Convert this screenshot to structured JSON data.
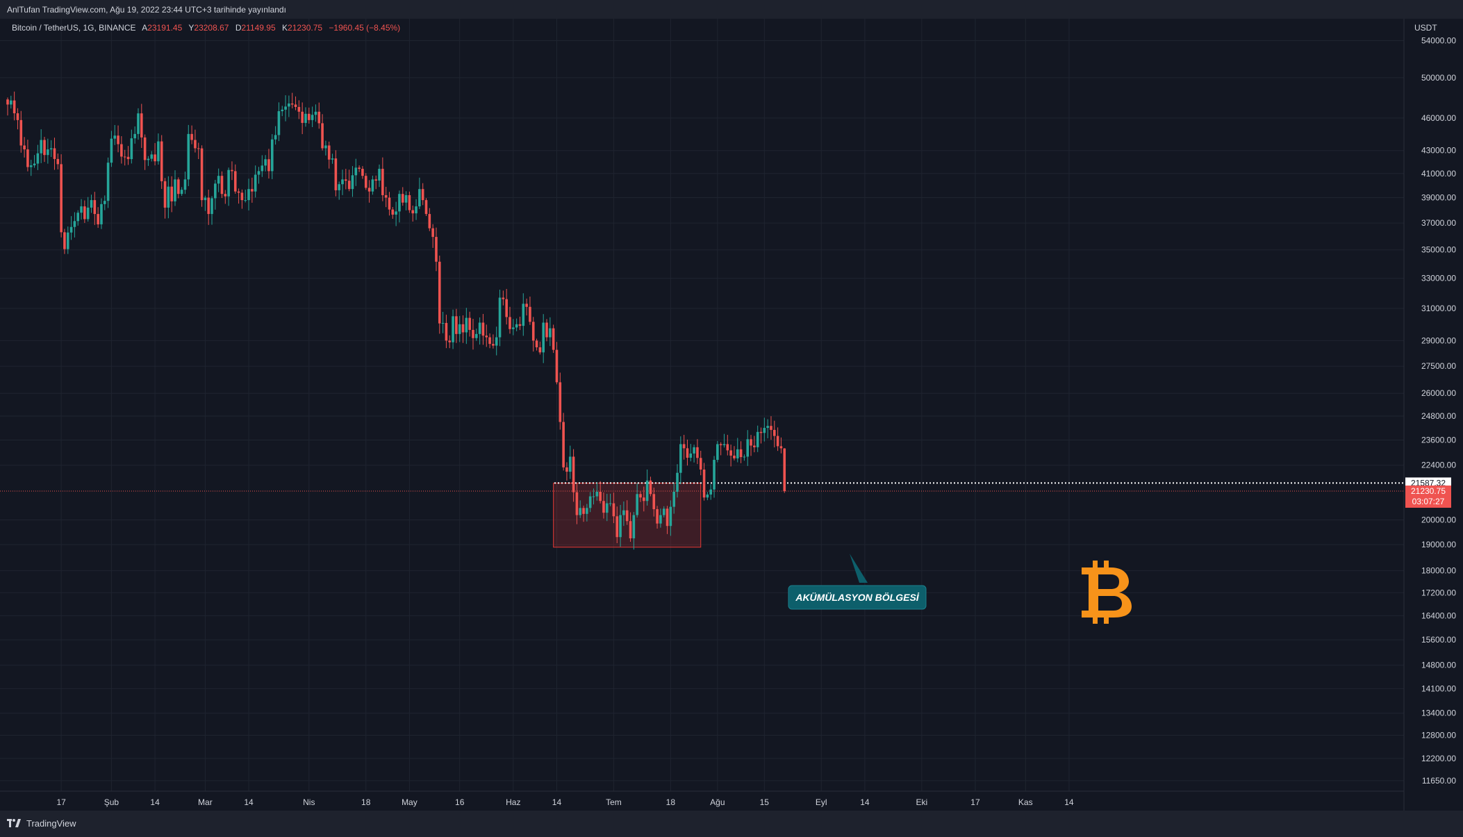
{
  "header": {
    "published_by": "AnlTufan TradingView.com, Ağu 19, 2022 23:44 UTC+3 tarihinde yayınlandı"
  },
  "legend": {
    "symbol": "Bitcoin / TetherUS, 1G, BINANCE",
    "open_label": "A",
    "open": "23191.45",
    "high_label": "Y",
    "high": "23208.67",
    "low_label": "D",
    "low": "21149.95",
    "close_label": "K",
    "close": "21230.75",
    "change": "−1960.45 (−8.45%)"
  },
  "price_axis": {
    "currency": "USDT",
    "ticks": [
      "54000.00",
      "50000.00",
      "46000.00",
      "43000.00",
      "41000.00",
      "39000.00",
      "37000.00",
      "35000.00",
      "33000.00",
      "31000.00",
      "29000.00",
      "27500.00",
      "26000.00",
      "24800.00",
      "23600.00",
      "22400.00",
      "20000.00",
      "19000.00",
      "18000.00",
      "17200.00",
      "16400.00",
      "15600.00",
      "14800.00",
      "14100.00",
      "13400.00",
      "12800.00",
      "12200.00",
      "11650.00"
    ],
    "line_label": "21587.32",
    "last_price": "21230.75",
    "countdown": "03:07:27"
  },
  "time_axis": {
    "ticks": [
      "17",
      "Şub",
      "14",
      "Mar",
      "14",
      "Nis",
      "18",
      "May",
      "16",
      "Haz",
      "14",
      "Tem",
      "18",
      "Ağu",
      "15",
      "Eyl",
      "14",
      "Eki",
      "17",
      "Kas",
      "14"
    ]
  },
  "annotation": {
    "label": "AKÜMÜLASYON BÖLGESİ"
  },
  "footer": {
    "brand": "TradingView"
  },
  "colors": {
    "background": "#131722",
    "up": "#26a69a",
    "down": "#ef5350",
    "accent_orange": "#f7931a",
    "zone_border": "#e53935",
    "callout": "#0d5f6b"
  },
  "icons": [
    "tradingview-logo-icon",
    "bitcoin-icon"
  ],
  "chart_data": {
    "type": "candlestick",
    "scale": "log",
    "symbol": "BTC/USDT",
    "ylim": [
      11400,
      56500
    ],
    "x_axis_ticks": [
      {
        "label": "17",
        "date": "2022-01-17"
      },
      {
        "label": "Şub",
        "date": "2022-02-01"
      },
      {
        "label": "14",
        "date": "2022-02-14"
      },
      {
        "label": "Mar",
        "date": "2022-03-01"
      },
      {
        "label": "14",
        "date": "2022-03-14"
      },
      {
        "label": "Nis",
        "date": "2022-04-01"
      },
      {
        "label": "18",
        "date": "2022-04-18"
      },
      {
        "label": "May",
        "date": "2022-05-01"
      },
      {
        "label": "16",
        "date": "2022-05-16"
      },
      {
        "label": "Haz",
        "date": "2022-06-01"
      },
      {
        "label": "14",
        "date": "2022-06-14"
      },
      {
        "label": "Tem",
        "date": "2022-07-01"
      },
      {
        "label": "18",
        "date": "2022-07-18"
      },
      {
        "label": "Ağu",
        "date": "2022-08-01"
      },
      {
        "label": "15",
        "date": "2022-08-15"
      },
      {
        "label": "Eyl",
        "date": "2022-09-01"
      },
      {
        "label": "14",
        "date": "2022-09-14"
      },
      {
        "label": "Eki",
        "date": "2022-10-01"
      },
      {
        "label": "17",
        "date": "2022-10-17"
      },
      {
        "label": "Kas",
        "date": "2022-11-01"
      },
      {
        "label": "14",
        "date": "2022-11-14"
      }
    ],
    "start_date": "2022-01-01",
    "end_date": "2022-08-19",
    "closes": [
      47300,
      47700,
      46450,
      45800,
      43450,
      43100,
      41550,
      41700,
      41850,
      42750,
      43950,
      42600,
      43100,
      43200,
      42250,
      41800,
      36300,
      35050,
      36280,
      36700,
      37150,
      37800,
      38300,
      37300,
      38200,
      38800,
      37700,
      36900,
      38480,
      38740,
      41930,
      44070,
      44350,
      43570,
      42460,
      42440,
      42240,
      44100,
      44500,
      46440,
      44180,
      42160,
      42270,
      42650,
      42050,
      43820,
      40350,
      38200,
      39900,
      38700,
      40500,
      39300,
      39640,
      40500,
      44500,
      43950,
      43200,
      43190,
      38800,
      39000,
      37700,
      38950,
      40150,
      40800,
      39300,
      39100,
      41300,
      41200,
      39500,
      39400,
      38800,
      38800,
      39700,
      39500,
      40900,
      41200,
      41680,
      42230,
      41200,
      44000,
      44400,
      46650,
      46800,
      47100,
      47400,
      47300,
      47060,
      46600,
      45530,
      46400,
      45800,
      46300,
      46600,
      45500,
      43200,
      43450,
      42200,
      42300,
      39600,
      40100,
      40500,
      40390,
      39700,
      40850,
      41500,
      41400,
      40800,
      39800,
      39500,
      40500,
      40400,
      41400,
      39200,
      39000,
      38050,
      37650,
      37900,
      39300,
      38600,
      39200,
      38000,
      37750,
      38300,
      39700,
      38800,
      37700,
      36600,
      35950,
      34150,
      30050,
      30080,
      29000,
      28900,
      30500,
      29400,
      30000,
      29500,
      30400,
      29650,
      29150,
      29400,
      30100,
      29300,
      29200,
      28800,
      28700,
      29200,
      31700,
      31600,
      30450,
      29700,
      29800,
      30000,
      29900,
      31300,
      31100,
      30150,
      29000,
      28600,
      28300,
      30100,
      29200,
      29750,
      28450,
      26600,
      24500,
      22300,
      22100,
      22800,
      21180,
      20200,
      20500,
      20250,
      20500,
      21000,
      21000,
      21200,
      20800,
      20300,
      20700,
      20700,
      20150,
      19300,
      20200,
      20400,
      19950,
      19250,
      20200,
      21100,
      20950,
      20800,
      21700,
      21100,
      20450,
      19850,
      20200,
      20470,
      19750,
      20550,
      21200,
      22050,
      23400,
      23200,
      22750,
      22950,
      23250,
      22740,
      22200,
      20950,
      21080,
      21300,
      22650,
      23400,
      23350,
      23400,
      23100,
      22850,
      22720,
      23150,
      22780,
      22800,
      23640,
      23330,
      23250,
      24000,
      23950,
      24200,
      24300,
      24100,
      23800,
      23300,
      23200,
      21230
    ],
    "series": [
      {
        "name": "BTC/USDT",
        "open": "23191.45",
        "high": "23208.67",
        "low": "21149.95",
        "close": "21230.75"
      }
    ],
    "horizontal_line": 21587.32,
    "zone": {
      "start_date": "2022-06-13",
      "end_date": "2022-07-27",
      "price_top": 21587.32,
      "price_bottom": 18900
    }
  }
}
